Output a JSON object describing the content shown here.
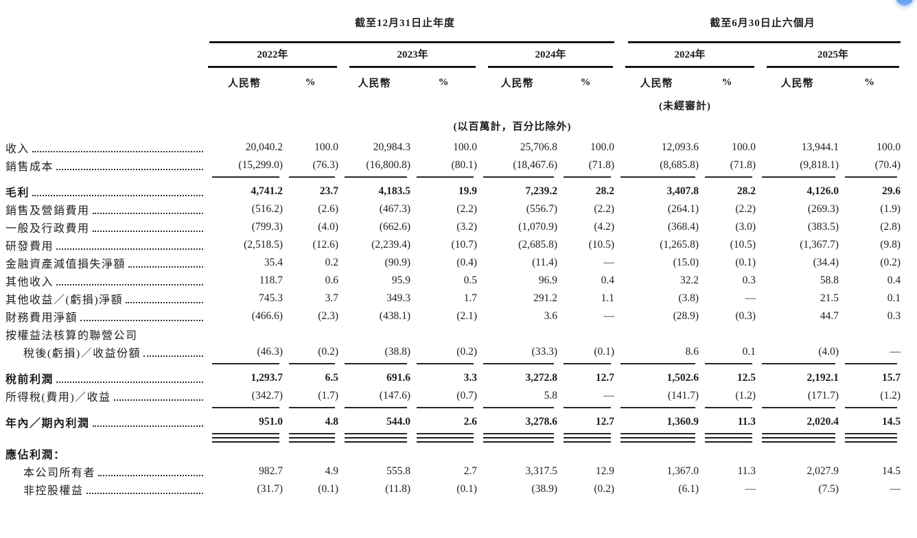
{
  "fab": {
    "color_top": "#2f7de0",
    "color_bottom": "#7ab1f5"
  },
  "table": {
    "groups": [
      {
        "title": "截至12月31日止年度",
        "years": [
          {
            "label": "2022年"
          },
          {
            "label": "2023年"
          },
          {
            "label": "2024年"
          }
        ]
      },
      {
        "title": "截至6月30日止六個月",
        "years": [
          {
            "label": "2024年"
          },
          {
            "label": "2025年"
          }
        ]
      }
    ],
    "subheaders": {
      "currency": "人民幣",
      "percent": "%"
    },
    "unaudited_note": "(未經審計)",
    "unit_note": "(以百萬計，百分比除外)",
    "rows": [
      {
        "label": "收入",
        "bold": false,
        "indent": false,
        "leader": true,
        "rule_after": null,
        "values": [
          "20,040.2",
          "100.0",
          "20,984.3",
          "100.0",
          "25,706.8",
          "100.0",
          "12,093.6",
          "100.0",
          "13,944.1",
          "100.0"
        ]
      },
      {
        "label": "銷售成本",
        "bold": false,
        "indent": false,
        "leader": true,
        "rule_after": "single",
        "values": [
          "(15,299.0)",
          "(76.3)",
          "(16,800.8)",
          "(80.1)",
          "(18,467.6)",
          "(71.8)",
          "(8,685.8)",
          "(71.8)",
          "(9,818.1)",
          "(70.4)"
        ]
      },
      {
        "label": "毛利",
        "bold": true,
        "indent": false,
        "leader": true,
        "rule_after": null,
        "values": [
          "4,741.2",
          "23.7",
          "4,183.5",
          "19.9",
          "7,239.2",
          "28.2",
          "3,407.8",
          "28.2",
          "4,126.0",
          "29.6"
        ]
      },
      {
        "label": "銷售及營銷費用",
        "bold": false,
        "indent": false,
        "leader": true,
        "rule_after": null,
        "values": [
          "(516.2)",
          "(2.6)",
          "(467.3)",
          "(2.2)",
          "(556.7)",
          "(2.2)",
          "(264.1)",
          "(2.2)",
          "(269.3)",
          "(1.9)"
        ]
      },
      {
        "label": "一般及行政費用",
        "bold": false,
        "indent": false,
        "leader": true,
        "rule_after": null,
        "values": [
          "(799.3)",
          "(4.0)",
          "(662.6)",
          "(3.2)",
          "(1,070.9)",
          "(4.2)",
          "(368.4)",
          "(3.0)",
          "(383.5)",
          "(2.8)"
        ]
      },
      {
        "label": "研發費用",
        "bold": false,
        "indent": false,
        "leader": true,
        "rule_after": null,
        "values": [
          "(2,518.5)",
          "(12.6)",
          "(2,239.4)",
          "(10.7)",
          "(2,685.8)",
          "(10.5)",
          "(1,265.8)",
          "(10.5)",
          "(1,367.7)",
          "(9.8)"
        ]
      },
      {
        "label": "金融資產減值損失淨額",
        "bold": false,
        "indent": false,
        "leader": true,
        "rule_after": null,
        "values": [
          "35.4",
          "0.2",
          "(90.9)",
          "(0.4)",
          "(11.4)",
          "—",
          "(15.0)",
          "(0.1)",
          "(34.4)",
          "(0.2)"
        ]
      },
      {
        "label": "其他收入",
        "bold": false,
        "indent": false,
        "leader": true,
        "rule_after": null,
        "values": [
          "118.7",
          "0.6",
          "95.9",
          "0.5",
          "96.9",
          "0.4",
          "32.2",
          "0.3",
          "58.8",
          "0.4"
        ]
      },
      {
        "label": "其他收益／(虧損)淨額",
        "bold": false,
        "indent": false,
        "leader": true,
        "rule_after": null,
        "values": [
          "745.3",
          "3.7",
          "349.3",
          "1.7",
          "291.2",
          "1.1",
          "(3.8)",
          "—",
          "21.5",
          "0.1"
        ]
      },
      {
        "label": "財務費用淨額",
        "bold": false,
        "indent": false,
        "leader": true,
        "rule_after": null,
        "values": [
          "(466.6)",
          "(2.3)",
          "(438.1)",
          "(2.1)",
          "3.6",
          "—",
          "(28.9)",
          "(0.3)",
          "44.7",
          "0.3"
        ]
      },
      {
        "label": "按權益法核算的聯營公司",
        "bold": false,
        "indent": false,
        "leader": false,
        "rule_after": null,
        "values": null
      },
      {
        "label": "稅後(虧損)／收益份額",
        "bold": false,
        "indent": true,
        "leader": true,
        "rule_after": "single",
        "values": [
          "(46.3)",
          "(0.2)",
          "(38.8)",
          "(0.2)",
          "(33.3)",
          "(0.1)",
          "8.6",
          "0.1",
          "(4.0)",
          "—"
        ]
      },
      {
        "label": "稅前利潤",
        "bold": true,
        "indent": false,
        "leader": true,
        "rule_after": null,
        "values": [
          "1,293.7",
          "6.5",
          "691.6",
          "3.3",
          "3,272.8",
          "12.7",
          "1,502.6",
          "12.5",
          "2,192.1",
          "15.7"
        ]
      },
      {
        "label": "所得稅(費用)／收益",
        "bold": false,
        "indent": false,
        "leader": true,
        "rule_after": "single",
        "values": [
          "(342.7)",
          "(1.7)",
          "(147.6)",
          "(0.7)",
          "5.8",
          "—",
          "(141.7)",
          "(1.2)",
          "(171.7)",
          "(1.2)"
        ]
      },
      {
        "label": "年內／期內利潤",
        "bold": true,
        "indent": false,
        "leader": true,
        "rule_after": "total",
        "values": [
          "951.0",
          "4.8",
          "544.0",
          "2.6",
          "3,278.6",
          "12.7",
          "1,360.9",
          "11.3",
          "2,020.4",
          "14.5"
        ]
      },
      {
        "label": "應佔利潤：",
        "bold": true,
        "indent": false,
        "leader": false,
        "rule_after": null,
        "values": null
      },
      {
        "label": "本公司所有者",
        "bold": false,
        "indent": true,
        "leader": true,
        "rule_after": null,
        "values": [
          "982.7",
          "4.9",
          "555.8",
          "2.7",
          "3,317.5",
          "12.9",
          "1,367.0",
          "11.3",
          "2,027.9",
          "14.5"
        ]
      },
      {
        "label": "非控股權益",
        "bold": false,
        "indent": true,
        "leader": true,
        "rule_after": null,
        "values": [
          "(31.7)",
          "(0.1)",
          "(11.8)",
          "(0.1)",
          "(38.9)",
          "(0.2)",
          "(6.1)",
          "—",
          "(7.5)",
          "—"
        ]
      }
    ]
  }
}
